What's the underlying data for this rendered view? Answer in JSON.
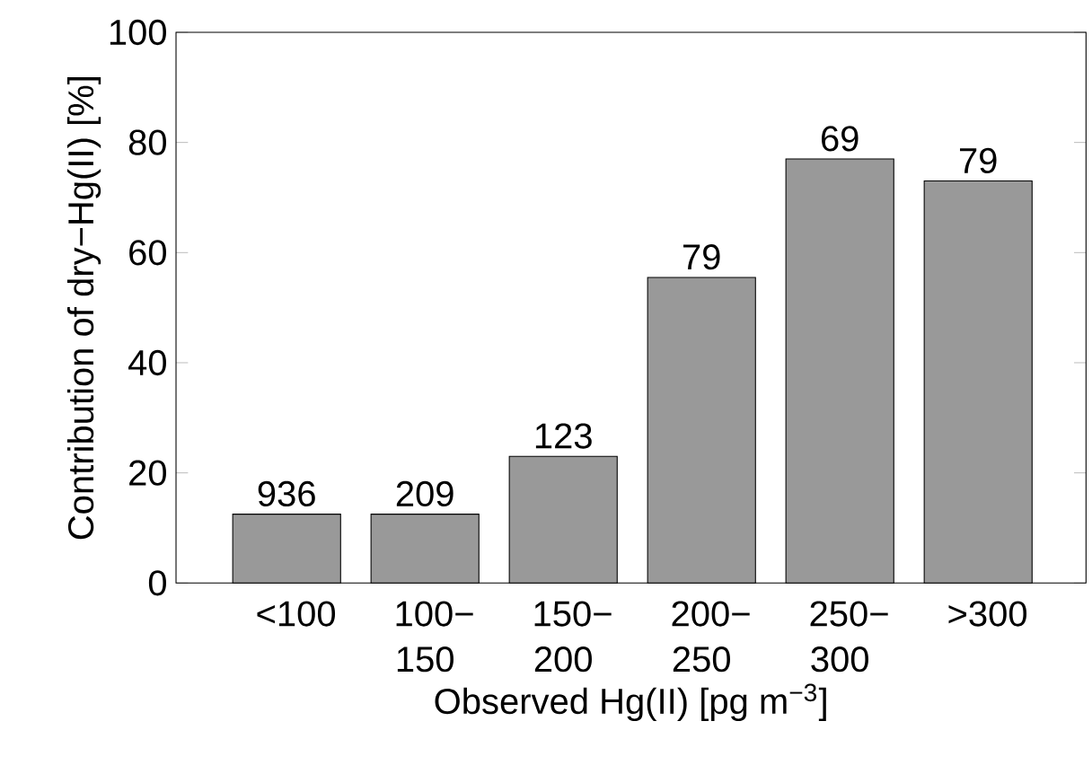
{
  "chart_data": {
    "type": "bar",
    "xlabel": "Observed Hg(II) [pg m$^{−3}$]",
    "ylabel": "Contribution of dry−Hg(II) [%]",
    "categories": [
      "<100",
      "100− 150",
      "150− 200",
      "200− 250",
      "250− 300",
      ">300"
    ],
    "values": [
      12.5,
      12.5,
      23,
      55.5,
      77,
      73
    ],
    "annotations": [
      {
        "text": "936",
        "x": "<100",
        "y": 12.5
      },
      {
        "text": "209",
        "x": "100− 150",
        "y": 12.5
      },
      {
        "text": "123",
        "x": "150− 200",
        "y": 23
      },
      {
        "text": "79",
        "x": "200− 250",
        "y": 55.5
      },
      {
        "text": "69",
        "x": "250− 300",
        "y": 77
      },
      {
        "text": "79",
        "x": ">300",
        "y": 73
      }
    ],
    "color": "#999999",
    "ylim": [
      0,
      100
    ],
    "yticks": [
      0,
      20,
      40,
      60,
      80,
      100
    ],
    "grid": false
  }
}
